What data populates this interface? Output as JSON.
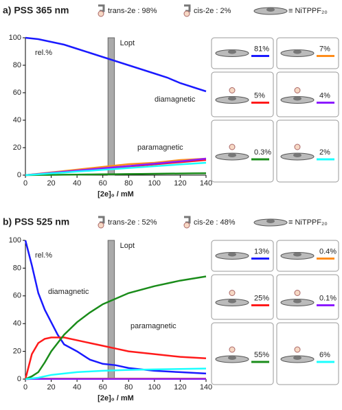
{
  "chart_data": [
    {
      "type": "line",
      "title": "a) PSS 365 nm",
      "legend_text": [
        "trans-2e : 98%",
        "cis-2e : 2%",
        "≡ NiTPPF₂₀"
      ],
      "x_label": "[2e]₀ / mM",
      "y_label": "rel.%",
      "band": [
        64,
        69
      ],
      "band_label": "Lopt",
      "annotations": [
        "diamagnetic",
        "paramagnetic"
      ],
      "x": [
        0,
        10,
        20,
        30,
        40,
        50,
        60,
        70,
        80,
        90,
        100,
        110,
        120,
        130,
        140
      ],
      "xlim": [
        0,
        140
      ],
      "xticks": [
        0,
        20,
        40,
        60,
        80,
        100,
        120,
        140
      ],
      "ylim": [
        0,
        100
      ],
      "yticks": [
        0,
        20,
        40,
        60,
        80,
        100
      ],
      "series": [
        {
          "name": "81%",
          "color": "#1a1aff",
          "values": [
            100,
            99,
            97,
            95,
            92,
            89,
            86,
            83,
            80,
            77,
            74,
            71,
            67,
            64,
            61
          ]
        },
        {
          "name": "7%",
          "color": "#ff8c1a",
          "values": [
            0,
            1,
            2,
            3,
            4,
            5,
            6,
            7,
            8,
            8.5,
            9,
            10,
            11,
            11.5,
            12
          ]
        },
        {
          "name": "5%",
          "color": "#ff1a1a",
          "values": [
            0,
            0.8,
            1.6,
            2.4,
            3.2,
            4,
            4.7,
            5.5,
            6.3,
            7,
            7.8,
            8.6,
            9.4,
            10.2,
            11
          ]
        },
        {
          "name": "4%",
          "color": "#8c1aff",
          "values": [
            0,
            0.8,
            1.7,
            2.5,
            3.3,
            4.2,
            5,
            5.8,
            6.6,
            7.5,
            8.3,
            9.2,
            10,
            11,
            12
          ]
        },
        {
          "name": "0.3%",
          "color": "#1a8c1a",
          "values": [
            0,
            0.1,
            0.2,
            0.3,
            0.4,
            0.5,
            0.6,
            0.7,
            0.8,
            0.9,
            1,
            1.1,
            1.2,
            1.3,
            1.4
          ]
        },
        {
          "name": "2%",
          "color": "#1affff",
          "values": [
            0,
            0.6,
            1.3,
            1.9,
            2.6,
            3.2,
            3.9,
            4.5,
            5.2,
            5.8,
            6.5,
            7.1,
            7.8,
            8.4,
            9
          ]
        }
      ]
    },
    {
      "type": "line",
      "title": "b) PSS 525 nm",
      "legend_text": [
        "trans-2e : 52%",
        "cis-2e : 48%",
        "≡ NiTPPF₂₀"
      ],
      "x_label": "[2e]₀ / mM",
      "y_label": "rel.%",
      "band": [
        64,
        69
      ],
      "band_label": "Lopt",
      "annotations": [
        "diamagnetic",
        "paramagnetic"
      ],
      "x": [
        0,
        5,
        10,
        15,
        20,
        25,
        30,
        40,
        50,
        60,
        70,
        80,
        100,
        120,
        140
      ],
      "xlim": [
        0,
        140
      ],
      "xticks": [
        0,
        20,
        40,
        60,
        80,
        100,
        120,
        140
      ],
      "ylim": [
        0,
        100
      ],
      "yticks": [
        0,
        20,
        40,
        60,
        80,
        100
      ],
      "series": [
        {
          "name": "13%",
          "color": "#1a1aff",
          "values": [
            100,
            82,
            62,
            50,
            41,
            32,
            25,
            20,
            14,
            11,
            10,
            8,
            6,
            5,
            4
          ]
        },
        {
          "name": "0.4%",
          "color": "#ff8c1a",
          "values": [
            0,
            0.2,
            0.3,
            0.4,
            0.4,
            0.4,
            0.4,
            0.4,
            0.4,
            0.4,
            0.4,
            0.4,
            0.4,
            0.4,
            0.4
          ]
        },
        {
          "name": "25%",
          "color": "#ff1a1a",
          "values": [
            0,
            18,
            26,
            29,
            30,
            30,
            30,
            28,
            26,
            24,
            22,
            20,
            18,
            16,
            15
          ]
        },
        {
          "name": "0.1%",
          "color": "#8c1aff",
          "values": [
            0,
            0.1,
            0.1,
            0.1,
            0.1,
            0.1,
            0.1,
            0.1,
            0.1,
            0.1,
            0.1,
            0.1,
            0.1,
            0.1,
            0.1
          ]
        },
        {
          "name": "55%",
          "color": "#1a8c1a",
          "values": [
            0,
            2,
            5,
            12,
            20,
            26,
            32,
            41,
            48,
            54,
            58,
            62,
            67,
            71,
            74
          ]
        },
        {
          "name": "6%",
          "color": "#1affff",
          "values": [
            0,
            0.5,
            1,
            2,
            3,
            3.5,
            4,
            5,
            5.5,
            6,
            6.3,
            6.6,
            7,
            7.3,
            7.6
          ]
        }
      ]
    }
  ]
}
